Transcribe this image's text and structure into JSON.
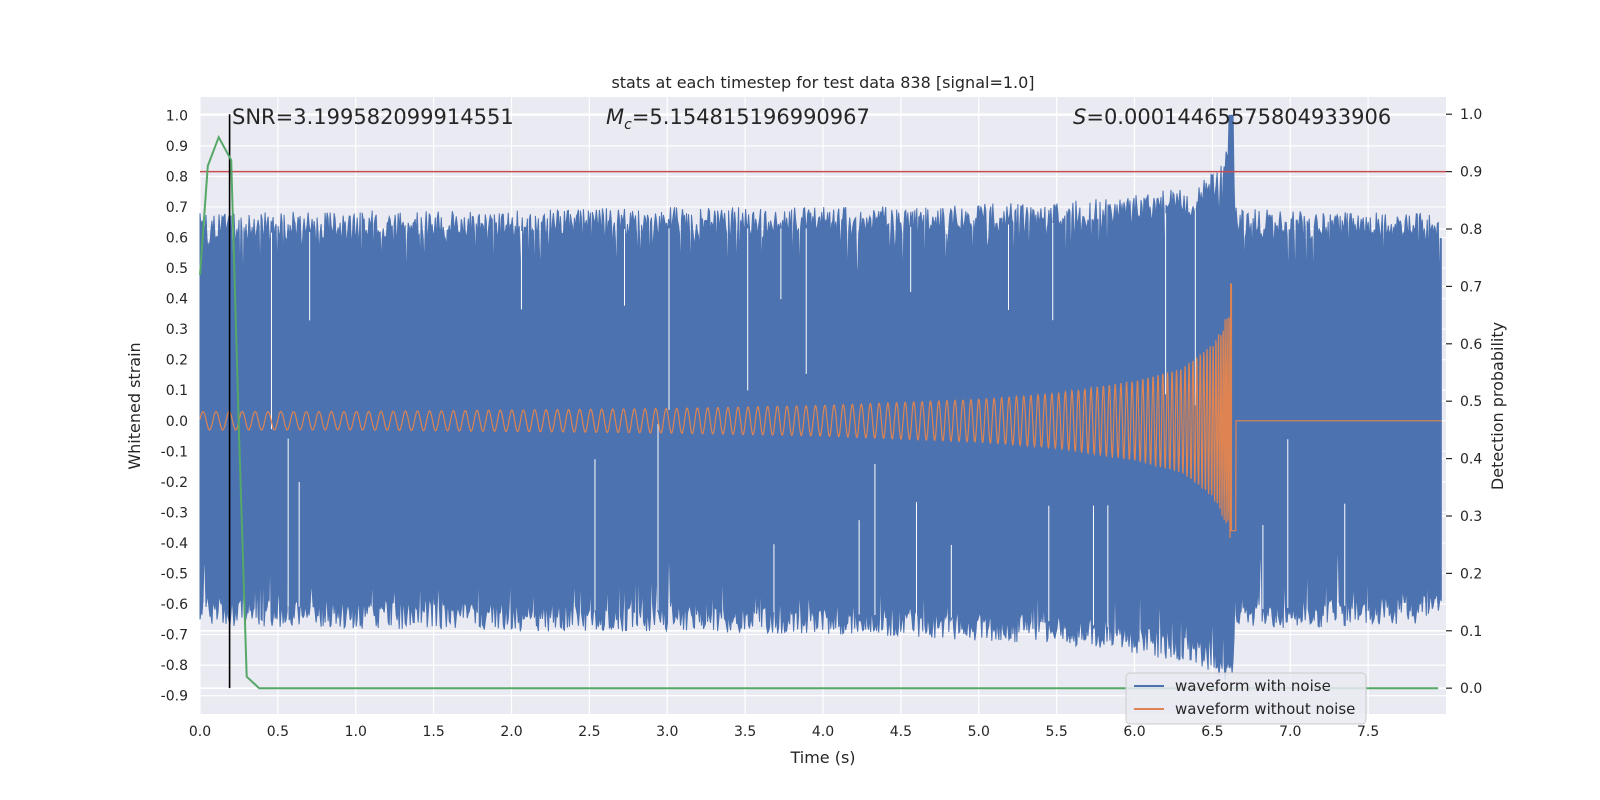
{
  "chart_data": {
    "type": "line",
    "title": "stats at each timestep for test data 838 [signal=1.0]",
    "xlabel": "Time (s)",
    "ylabel": "Whitened strain",
    "y2label": "Detection probability",
    "xlim": [
      0.0,
      8.0
    ],
    "ylim": [
      -0.96,
      1.06
    ],
    "y2lim": [
      -0.045,
      1.03
    ],
    "xticks": [
      "0.0",
      "0.5",
      "1.0",
      "1.5",
      "2.0",
      "2.5",
      "3.0",
      "3.5",
      "4.0",
      "4.5",
      "5.0",
      "5.5",
      "6.0",
      "6.5",
      "7.0",
      "7.5"
    ],
    "yticks": [
      "1.0",
      "0.9",
      "0.8",
      "0.7",
      "0.6",
      "0.5",
      "0.4",
      "0.3",
      "0.2",
      "0.1",
      "0.0",
      "-0.1",
      "-0.2",
      "-0.3",
      "-0.4",
      "-0.5",
      "-0.6",
      "-0.7",
      "-0.8",
      "-0.9"
    ],
    "y2ticks": [
      "1.0",
      "0.9",
      "0.8",
      "0.7",
      "0.6",
      "0.5",
      "0.4",
      "0.3",
      "0.2",
      "0.1",
      "0.0"
    ],
    "annotations": {
      "snr": "SNR=3.199582099914551",
      "mc_symbol": "M",
      "mc_sub": "c",
      "mc_value": "=5.154815196990967",
      "s_symbol": "S",
      "s_value": "=0.00014465575804933906"
    },
    "threshold": {
      "axis": "right",
      "value": 0.9,
      "color": "#c44e52"
    },
    "marker_line": {
      "x": 0.19,
      "color": "#000000"
    },
    "series": [
      {
        "name": "waveform with noise",
        "color": "#4c72b0",
        "description": "whitened noisy strain, envelope approx +/-0.7 with peaks to 1.0 near merger",
        "envelope_upper": [
          [
            0.0,
            0.68
          ],
          [
            1.0,
            0.69
          ],
          [
            2.0,
            0.69
          ],
          [
            3.0,
            0.7
          ],
          [
            4.0,
            0.7
          ],
          [
            5.0,
            0.71
          ],
          [
            5.5,
            0.72
          ],
          [
            6.0,
            0.74
          ],
          [
            6.4,
            0.77
          ],
          [
            6.55,
            0.83
          ],
          [
            6.62,
            1.0
          ],
          [
            6.65,
            0.7
          ],
          [
            7.0,
            0.69
          ],
          [
            8.0,
            0.68
          ]
        ],
        "envelope_lower": [
          [
            0.0,
            -0.67
          ],
          [
            1.0,
            -0.68
          ],
          [
            2.0,
            -0.69
          ],
          [
            3.0,
            -0.69
          ],
          [
            4.0,
            -0.7
          ],
          [
            5.0,
            -0.72
          ],
          [
            5.5,
            -0.73
          ],
          [
            6.0,
            -0.76
          ],
          [
            6.4,
            -0.8
          ],
          [
            6.55,
            -0.84
          ],
          [
            6.62,
            -0.87
          ],
          [
            6.65,
            -0.69
          ],
          [
            7.0,
            -0.68
          ],
          [
            8.0,
            -0.66
          ]
        ]
      },
      {
        "name": "waveform without noise",
        "color": "#dd8452",
        "description": "chirp signal, amplitude grows until merger at 6.62 s",
        "amplitude_envelope": [
          [
            0.0,
            0.03
          ],
          [
            1.0,
            0.03
          ],
          [
            2.0,
            0.035
          ],
          [
            3.0,
            0.04
          ],
          [
            4.0,
            0.05
          ],
          [
            5.0,
            0.07
          ],
          [
            5.5,
            0.09
          ],
          [
            6.0,
            0.13
          ],
          [
            6.3,
            0.17
          ],
          [
            6.5,
            0.25
          ],
          [
            6.6,
            0.35
          ],
          [
            6.62,
            0.45
          ],
          [
            6.65,
            0.0
          ],
          [
            8.0,
            0.0
          ]
        ],
        "merger_time": 6.62,
        "max": 0.45,
        "min": -0.36
      },
      {
        "name": "detection probability",
        "axis": "right",
        "color": "#55a868",
        "x": [
          0.0,
          0.05,
          0.12,
          0.2,
          0.25,
          0.3,
          0.38,
          0.5,
          1.0,
          2.0,
          3.0,
          4.0,
          5.0,
          6.0,
          7.0,
          7.95
        ],
        "y": [
          0.72,
          0.91,
          0.96,
          0.92,
          0.45,
          0.02,
          0.0,
          0.0,
          0.0,
          0.0,
          0.0,
          0.0,
          0.0,
          0.0,
          0.0,
          0.0
        ]
      }
    ],
    "legend": {
      "position": "lower-right",
      "entries": [
        {
          "label": "waveform with noise",
          "color": "#4c72b0"
        },
        {
          "label": "waveform without noise",
          "color": "#dd8452"
        }
      ]
    }
  }
}
